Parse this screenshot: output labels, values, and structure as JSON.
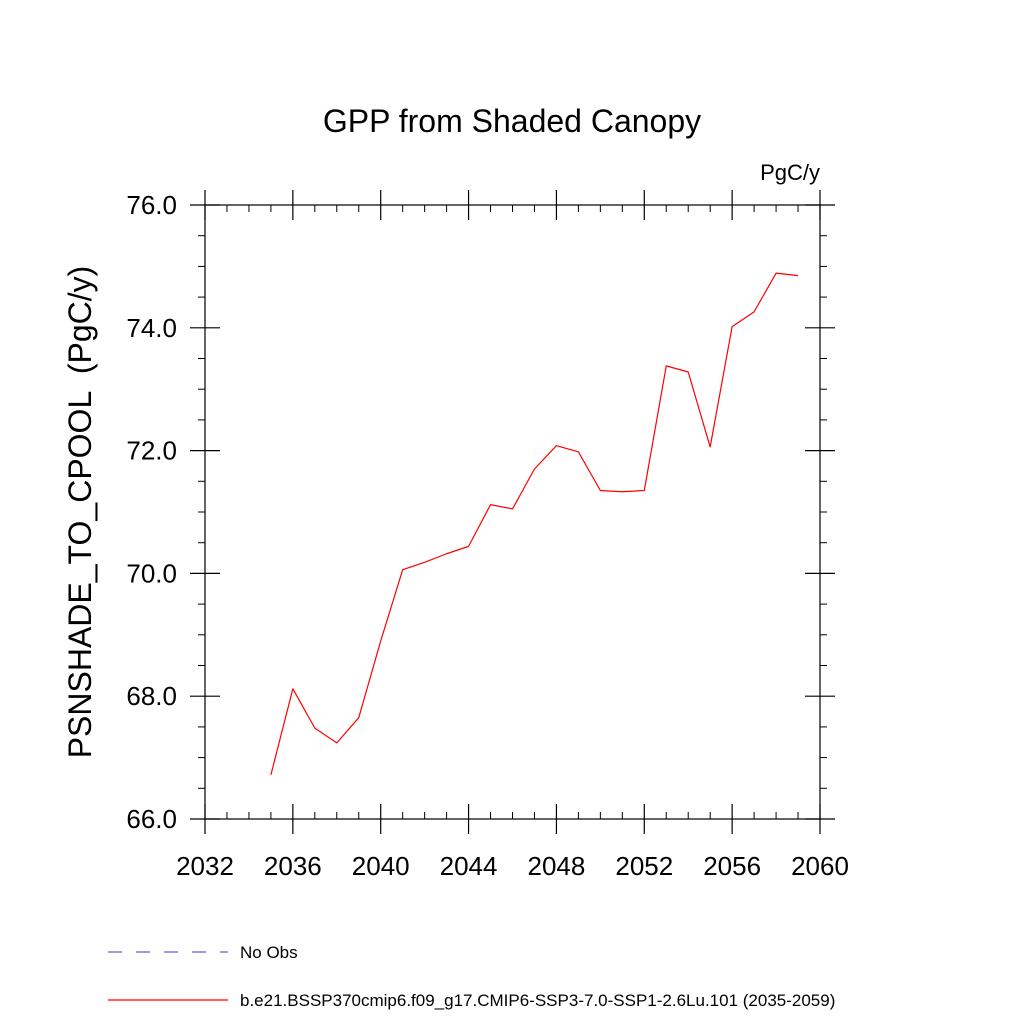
{
  "chart_data": {
    "type": "line",
    "title": "GPP from Shaded Canopy",
    "units_label": "PgC/y",
    "ylabel": "PSNSHADE_TO_CPOOL  (PgC/y)",
    "xlabel": "",
    "xlim": [
      2032,
      2060
    ],
    "ylim": [
      66.0,
      76.0
    ],
    "x_major_ticks": [
      2032,
      2036,
      2040,
      2044,
      2048,
      2052,
      2056,
      2060
    ],
    "x_tick_labels": [
      "2032",
      "2036",
      "2040",
      "2044",
      "2048",
      "2052",
      "2056",
      "2060"
    ],
    "y_major_ticks": [
      66.0,
      68.0,
      70.0,
      72.0,
      74.0,
      76.0
    ],
    "y_tick_labels": [
      "66.0",
      "68.0",
      "70.0",
      "72.0",
      "74.0",
      "76.0"
    ],
    "grid": false,
    "legend_position": "bottom-left",
    "series": [
      {
        "name": "b.e21.BSSP370cmip6.f09_g17.CMIP6-SSP3-7.0-SSP1-2.6Lu.101 (2035-2059)",
        "color": "#ff0000",
        "style": "solid",
        "x": [
          2035,
          2036,
          2037,
          2038,
          2039,
          2040,
          2041,
          2042,
          2043,
          2044,
          2045,
          2046,
          2047,
          2048,
          2049,
          2050,
          2051,
          2052,
          2053,
          2054,
          2055,
          2056,
          2057,
          2058,
          2059
        ],
        "y": [
          66.72,
          68.12,
          67.48,
          67.24,
          67.65,
          68.9,
          70.06,
          70.18,
          70.32,
          70.44,
          71.12,
          71.05,
          71.7,
          72.08,
          71.98,
          71.35,
          71.33,
          71.35,
          73.38,
          73.28,
          72.06,
          74.02,
          74.26,
          74.89,
          74.85
        ]
      }
    ],
    "legend_entries": [
      {
        "label": "No Obs",
        "color": "#6a5acd",
        "style": "dashed"
      },
      {
        "label": "b.e21.BSSP370cmip6.f09_g17.CMIP6-SSP3-7.0-SSP1-2.6Lu.101 (2035-2059)",
        "color": "#ff0000",
        "style": "solid"
      }
    ]
  }
}
